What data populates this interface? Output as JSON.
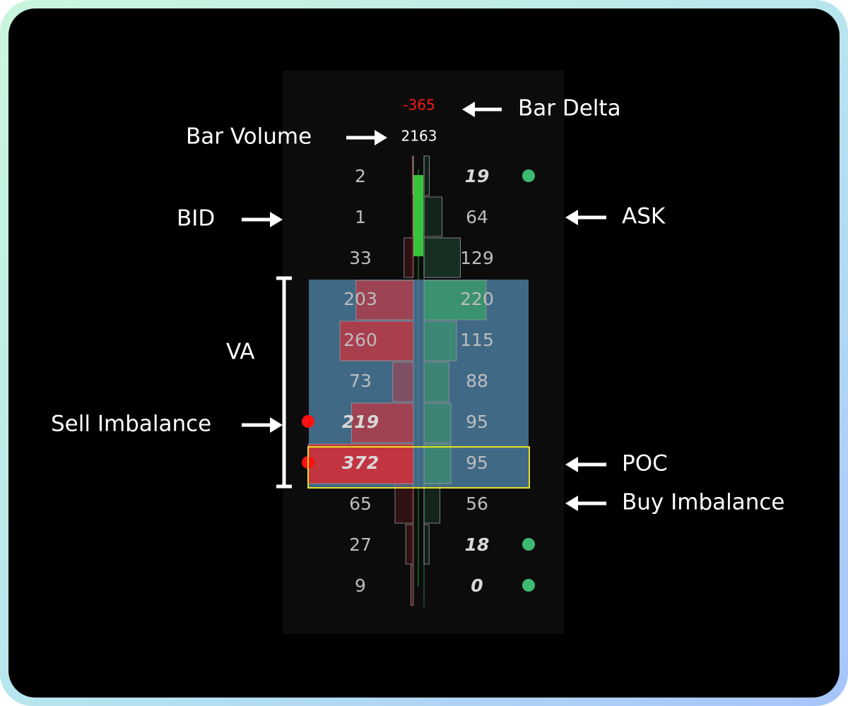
{
  "chart_data": {
    "type": "footprint",
    "bar_delta": -365,
    "bar_volume": 2163,
    "bid": [
      2,
      1,
      33,
      203,
      260,
      73,
      219,
      372,
      65,
      27,
      9
    ],
    "ask": [
      19,
      64,
      129,
      220,
      115,
      88,
      95,
      95,
      56,
      18,
      0
    ],
    "value_area": [
      3,
      7
    ],
    "poc": 7,
    "sell_imbalance": [
      6,
      7
    ],
    "buy_imbalance": [
      0,
      9,
      10
    ],
    "bid_color": "#c8323c",
    "ask_color": "#3a9a6a",
    "delta_color": "#ff1a1a",
    "annotations": [
      "Bar Delta",
      "Bar Volume",
      "BID",
      "ASK",
      "VA",
      "Sell Imbalance",
      "POC",
      "Buy Imbalance"
    ]
  }
}
